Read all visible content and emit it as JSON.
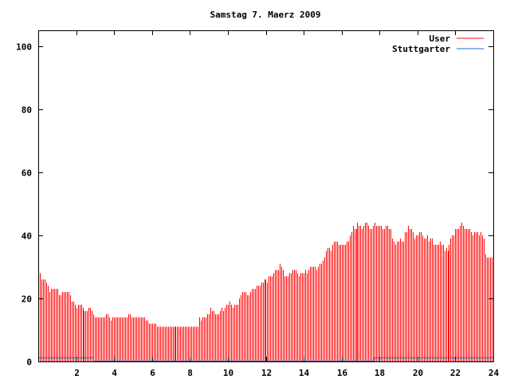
{
  "chart_data": {
    "type": "bar",
    "title": "Samstag 7. Maerz 2009",
    "xlabel": "",
    "ylabel": "",
    "xlim": [
      0,
      24
    ],
    "ylim": [
      0,
      105
    ],
    "x_ticks": [
      "2",
      "4",
      "6",
      "8",
      "10",
      "12",
      "14",
      "16",
      "18",
      "20",
      "22",
      "24"
    ],
    "x_tick_values": [
      2,
      4,
      6,
      8,
      10,
      12,
      14,
      16,
      18,
      20,
      22,
      24
    ],
    "y_ticks": [
      "0",
      "20",
      "40",
      "60",
      "80",
      "100"
    ],
    "y_tick_values": [
      0,
      20,
      40,
      60,
      80,
      100
    ],
    "grid": false,
    "legend_position": "top-right",
    "series": [
      {
        "name": "User",
        "style": "impulses",
        "color": "#ff0000",
        "x_step_hours": 0.0833333,
        "values": [
          27,
          28,
          26,
          26,
          26,
          25,
          24,
          22,
          23,
          23,
          23,
          23,
          23,
          21,
          21,
          22,
          22,
          22,
          22,
          22,
          21,
          19,
          19,
          18,
          17,
          18,
          18,
          18,
          17,
          16,
          16,
          16,
          17,
          17,
          16,
          15,
          14,
          14,
          14,
          14,
          14,
          14,
          14,
          15,
          15,
          14,
          13,
          14,
          14,
          14,
          14,
          14,
          14,
          14,
          14,
          14,
          14,
          15,
          15,
          14,
          14,
          14,
          14,
          14,
          14,
          14,
          14,
          14,
          13,
          13,
          12,
          12,
          12,
          12,
          12,
          11,
          11,
          11,
          11,
          11,
          11,
          11,
          11,
          11,
          11,
          11,
          11,
          11,
          11,
          11,
          11,
          11,
          11,
          11,
          11,
          11,
          11,
          11,
          11,
          11,
          11,
          11,
          14,
          13,
          14,
          14,
          14,
          15,
          15,
          17,
          16,
          16,
          15,
          15,
          15,
          16,
          17,
          16,
          17,
          18,
          18,
          19,
          18,
          17,
          18,
          18,
          18,
          20,
          21,
          22,
          22,
          22,
          21,
          21,
          22,
          23,
          23,
          23,
          24,
          24,
          24,
          25,
          25,
          26,
          26,
          25,
          27,
          27,
          27,
          28,
          29,
          29,
          29,
          31,
          30,
          29,
          27,
          27,
          27,
          28,
          28,
          29,
          29,
          29,
          28,
          27,
          28,
          28,
          28,
          29,
          28,
          29,
          30,
          30,
          30,
          30,
          29,
          30,
          31,
          31,
          32,
          33,
          35,
          36,
          36,
          35,
          37,
          38,
          38,
          38,
          37,
          37,
          37,
          37,
          37,
          38,
          38,
          40,
          41,
          43,
          42,
          42,
          44,
          43,
          43,
          42,
          43,
          44,
          44,
          43,
          42,
          42,
          43,
          44,
          43,
          43,
          43,
          43,
          42,
          42,
          43,
          43,
          42,
          42,
          39,
          38,
          37,
          38,
          38,
          39,
          38,
          38,
          41,
          41,
          43,
          42,
          42,
          41,
          39,
          40,
          40,
          41,
          41,
          40,
          39,
          39,
          40,
          38,
          39,
          39,
          37,
          37,
          37,
          37,
          38,
          37,
          37,
          35,
          36,
          35,
          37,
          39,
          40,
          40,
          42,
          42,
          42,
          43,
          44,
          43,
          42,
          42,
          42,
          42,
          41,
          40,
          41,
          41,
          41,
          40,
          41,
          40,
          39,
          34,
          33,
          33,
          33,
          33
        ]
      },
      {
        "name": "Stuttgarter",
        "style": "lines",
        "color": "#1f6fd6",
        "points": [
          [
            0,
            1
          ],
          [
            2.92,
            1
          ],
          [
            2.92,
            0
          ],
          [
            17.7,
            0
          ],
          [
            17.7,
            1
          ],
          [
            24,
            1
          ]
        ]
      }
    ]
  }
}
